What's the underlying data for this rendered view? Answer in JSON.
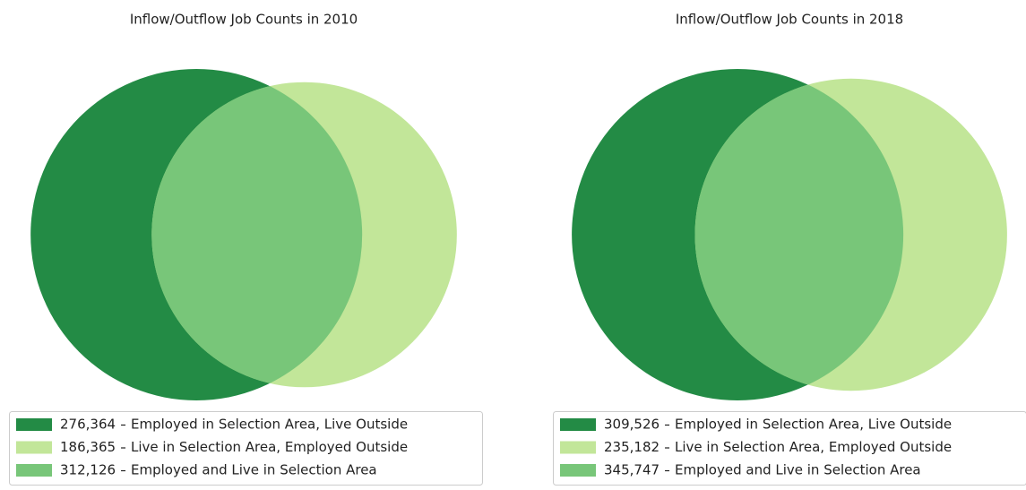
{
  "chart_data": [
    {
      "type": "venn",
      "title": "Inflow/Outflow Job Counts in 2010",
      "series": [
        {
          "name": "Employed in Selection Area, Live Outside",
          "color": "#238b45",
          "value": 276364,
          "value_label": "276,364"
        },
        {
          "name": "Live in Selection Area, Employed Outside",
          "color": "#c2e699",
          "value": 186365,
          "value_label": "186,365"
        },
        {
          "name": "Employed and Live in Selection Area",
          "color": "#78c679",
          "value": 312126,
          "value_label": "312,126"
        }
      ]
    },
    {
      "type": "venn",
      "title": "Inflow/Outflow Job Counts in 2018",
      "series": [
        {
          "name": "Employed in Selection Area, Live Outside",
          "color": "#238b45",
          "value": 309526,
          "value_label": "309,526"
        },
        {
          "name": "Live in Selection Area, Employed Outside",
          "color": "#c2e699",
          "value": 235182,
          "value_label": "235,182"
        },
        {
          "name": "Employed and Live in Selection Area",
          "color": "#78c679",
          "value": 345747,
          "value_label": "345,747"
        }
      ]
    }
  ]
}
